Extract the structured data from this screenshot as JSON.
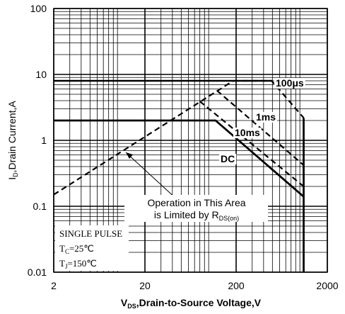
{
  "chart_data": {
    "type": "line",
    "log_x": true,
    "log_y": true,
    "grid": true,
    "xlim": [
      2,
      2000
    ],
    "ylim": [
      0.01,
      100
    ],
    "xticks": [
      2,
      20,
      200,
      2000
    ],
    "yticks": [
      0.01,
      0.1,
      1,
      10,
      100
    ],
    "xlabel": {
      "main": "V",
      "sub": "DS",
      "rest": ",Drain-to-Source Voltage,V"
    },
    "ylabel": {
      "main": "I",
      "sub": "D",
      "rest": ",Drain Current,A"
    },
    "series": [
      {
        "color": "#000000",
        "dash": false,
        "x": [
          2,
          490
        ],
        "values": [
          8,
          8
        ]
      },
      {
        "color": "#000000",
        "dash": true,
        "x": [
          2,
          186
        ],
        "values": [
          0.15,
          8
        ]
      },
      {
        "color": "#000000",
        "dash": true,
        "x": [
          186,
          490,
          1100
        ],
        "values": [
          8,
          8,
          2.2
        ]
      },
      {
        "color": "#000000",
        "dash": true,
        "x": [
          123,
          1100
        ],
        "values": [
          5.7,
          0.42
        ]
      },
      {
        "color": "#000000",
        "dash": true,
        "x": [
          80,
          1100
        ],
        "values": [
          3.9,
          0.2
        ]
      },
      {
        "color": "#000000",
        "dash": false,
        "x": [
          2,
          119,
          1100
        ],
        "values": [
          2,
          2,
          0.14
        ]
      },
      {
        "color": "#000000",
        "dash": false,
        "x": [
          1100,
          1100
        ],
        "values": [
          2.2,
          0.01
        ]
      }
    ],
    "curve_labels": [
      "100μs",
      "1ms",
      "10ms",
      "DC"
    ],
    "area_note": {
      "line1": "Operation in This Area",
      "line2": "is Limited by R",
      "line2_sub": "DS(on)"
    },
    "conditions": {
      "line1": "SINGLE PULSE",
      "tc_main": "T",
      "tc_sub": "C",
      "tc_rest": "=25℃",
      "tj_main": "T",
      "tj_sub": "J",
      "tj_rest": "=150℃"
    }
  }
}
